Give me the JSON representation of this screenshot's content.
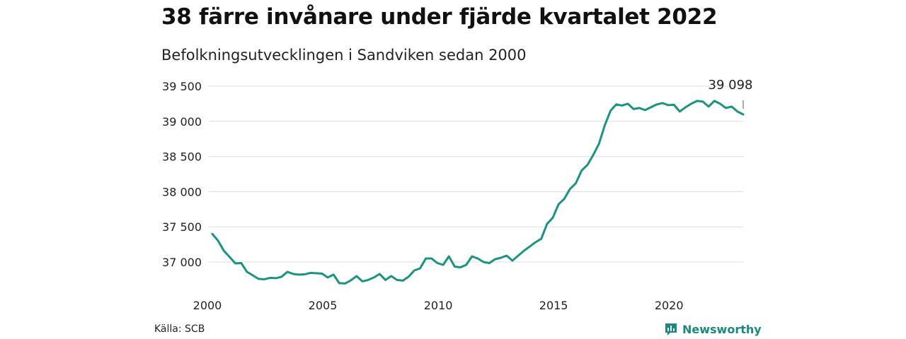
{
  "title": "38 färre invånare under fjärde kvartalet 2022",
  "subtitle": "Befolkningsutvecklingen i Sandviken sedan 2000",
  "source": "Källa: SCB",
  "brand": "Newsworthy",
  "colors": {
    "line": "#1a9480",
    "grid": "#dddddd",
    "brand": "#1a8a7e"
  },
  "icons": {
    "brand": "bar-chart-speech-bubble-icon"
  },
  "chart_data": {
    "type": "line",
    "x_start": 2000,
    "x_step_years": 0.25,
    "x_ticks": [
      2000,
      2005,
      2010,
      2015,
      2020
    ],
    "x_tick_labels": [
      "2000",
      "2005",
      "2010",
      "2015",
      "2020"
    ],
    "y_ticks": [
      37000,
      37500,
      38000,
      38500,
      39000,
      39500
    ],
    "y_tick_labels": [
      "37 000",
      "37 500",
      "38 000",
      "38 500",
      "39 000",
      "39 500"
    ],
    "xlim": [
      2000,
      2023
    ],
    "ylim": [
      36700,
      39550
    ],
    "grid": "horizontal",
    "end_label": "39 098",
    "series": [
      {
        "values": [
          37400,
          37300,
          37160,
          37070,
          36980,
          36985,
          36860,
          36810,
          36760,
          36755,
          36775,
          36770,
          36790,
          36860,
          36830,
          36820,
          36825,
          36845,
          36840,
          36835,
          36780,
          36820,
          36700,
          36695,
          36740,
          36800,
          36725,
          36745,
          36780,
          36830,
          36745,
          36800,
          36745,
          36735,
          36790,
          36880,
          36910,
          37050,
          37050,
          36985,
          36960,
          37080,
          36935,
          36925,
          36960,
          37080,
          37050,
          37000,
          36985,
          37040,
          37060,
          37090,
          37020,
          37090,
          37160,
          37220,
          37280,
          37330,
          37540,
          37630,
          37820,
          37900,
          38040,
          38120,
          38300,
          38380,
          38520,
          38680,
          38940,
          39150,
          39240,
          39225,
          39250,
          39175,
          39190,
          39160,
          39200,
          39240,
          39260,
          39230,
          39235,
          39140,
          39200,
          39250,
          39290,
          39280,
          39210,
          39290,
          39250,
          39190,
          39210,
          39140,
          39098
        ]
      }
    ]
  }
}
